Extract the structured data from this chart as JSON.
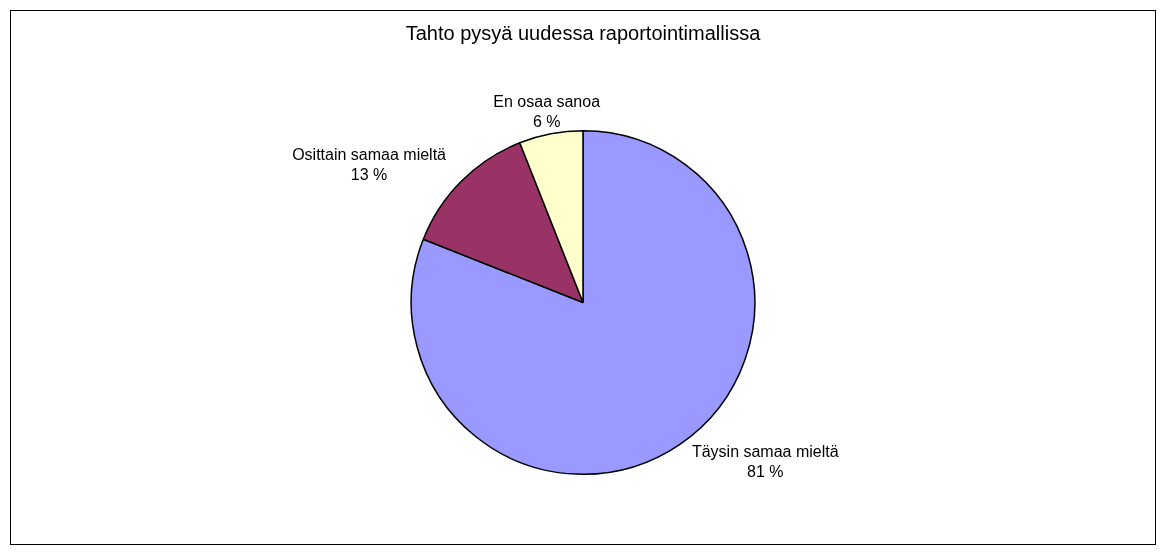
{
  "chart_data": {
    "type": "pie",
    "title": "Tahto pysyä uudessa raportointimallissa",
    "categories": [
      "Täysin samaa mieltä",
      "Osittain samaa mieltä",
      "En osaa sanoa"
    ],
    "values": [
      81,
      13,
      6
    ],
    "colors": [
      "#9999ff",
      "#993366",
      "#ffffcc"
    ],
    "value_labels": [
      "81 %",
      "13 %",
      "6 %"
    ],
    "legend": false
  }
}
